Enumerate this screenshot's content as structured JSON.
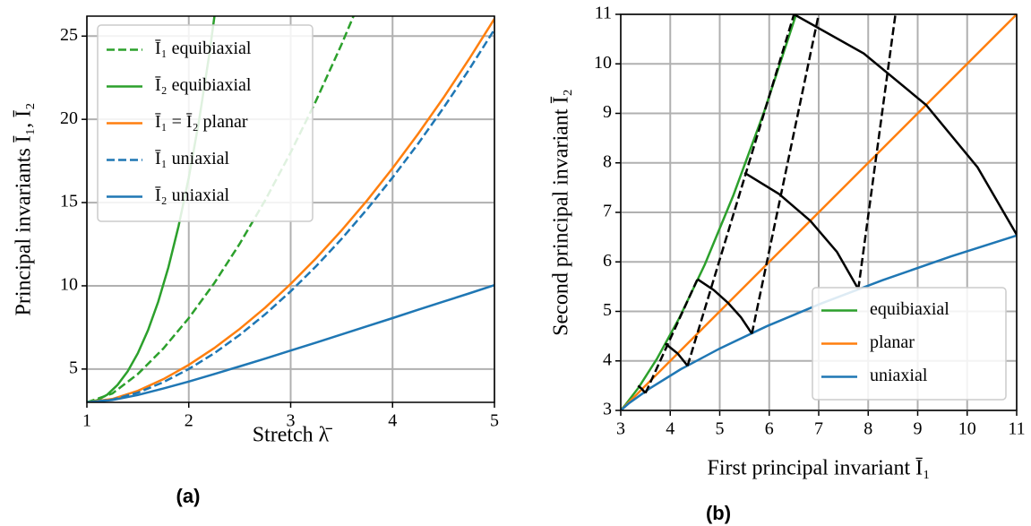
{
  "chart_data": [
    {
      "type": "line",
      "caption": "(a)",
      "xlabel": "Stretch λ̄",
      "ylabel": "Principal invariants Ī₁, Ī₂",
      "xlim": [
        1,
        5
      ],
      "ylim": [
        3,
        26.2
      ],
      "xticks": [
        1,
        2,
        3,
        4,
        5
      ],
      "yticks": [
        5,
        10,
        15,
        20,
        25
      ],
      "grid": true,
      "legend": "upper left",
      "series": [
        {
          "name": "Ī₁ equibiaxial",
          "color": "#2ca02c",
          "linestyle": "dashed",
          "x": [
            1,
            1.25,
            1.5,
            1.75,
            2,
            2.25,
            2.5,
            2.75,
            3,
            3.25,
            3.5,
            3.75
          ],
          "values": [
            3,
            3.53,
            4.7,
            6.23,
            8.06,
            10.16,
            12.53,
            15.14,
            18.01,
            21.13,
            24.51,
            28.13
          ]
        },
        {
          "name": "Ī₂ equibiaxial",
          "color": "#2ca02c",
          "linestyle": "solid",
          "x": [
            1,
            1.1,
            1.2,
            1.3,
            1.4,
            1.5,
            1.6,
            1.7,
            1.8,
            1.9,
            2,
            2.1,
            2.2,
            2.3
          ],
          "values": [
            3,
            3.12,
            3.46,
            4.04,
            4.86,
            5.95,
            7.33,
            9.04,
            11.11,
            13.59,
            16.5,
            19.9,
            23.84,
            28.36
          ]
        },
        {
          "name": "Ī₁ = Ī₂ planar",
          "color": "#ff7f0e",
          "linestyle": "solid",
          "x": [
            1,
            1.25,
            1.5,
            1.75,
            2,
            2.25,
            2.5,
            2.75,
            3,
            3.25,
            3.5,
            3.75,
            4,
            4.25,
            4.5,
            4.75,
            5
          ],
          "values": [
            3,
            3.2,
            3.69,
            4.39,
            5.25,
            6.26,
            7.41,
            8.69,
            10.11,
            11.66,
            13.33,
            15.13,
            17.06,
            19.12,
            21.3,
            23.61,
            26.04
          ]
        },
        {
          "name": "Ī₁ uniaxial",
          "color": "#1f77b4",
          "linestyle": "dashed",
          "x": [
            1,
            1.25,
            1.5,
            1.75,
            2,
            2.25,
            2.5,
            2.75,
            3,
            3.25,
            3.5,
            3.75,
            4,
            4.25,
            4.5,
            4.75,
            5
          ],
          "values": [
            3,
            3.16,
            3.58,
            4.21,
            5,
            5.95,
            7.05,
            8.29,
            9.67,
            11.18,
            12.82,
            14.6,
            16.5,
            18.53,
            20.69,
            22.98,
            25.4
          ]
        },
        {
          "name": "Ī₂ uniaxial",
          "color": "#1f77b4",
          "linestyle": "solid",
          "x": [
            1,
            1.25,
            1.5,
            1.75,
            2,
            2.25,
            2.5,
            2.75,
            3,
            3.25,
            3.5,
            3.75,
            4,
            4.25,
            4.5,
            4.75,
            5
          ],
          "values": [
            3,
            3.14,
            3.44,
            3.83,
            4.25,
            4.7,
            5.16,
            5.63,
            6.11,
            6.59,
            7.08,
            7.57,
            8.06,
            8.56,
            9.05,
            9.54,
            10.04
          ]
        }
      ]
    },
    {
      "type": "line",
      "caption": "(b)",
      "xlabel": "First principal invariant Ī₁",
      "ylabel": "Second principal invariant Ī₂",
      "xlim": [
        3,
        11
      ],
      "ylim": [
        3,
        11
      ],
      "xticks": [
        3,
        4,
        5,
        6,
        7,
        8,
        9,
        10,
        11
      ],
      "yticks": [
        3,
        4,
        5,
        6,
        7,
        8,
        9,
        10,
        11
      ],
      "grid": true,
      "legend": "lower right",
      "series": [
        {
          "name": "equibiaxial",
          "color": "#2ca02c",
          "linestyle": "solid",
          "x": [
            3,
            3.1,
            3.36,
            3.73,
            4.18,
            4.7,
            5.27,
            5.9,
            6.58
          ],
          "values": [
            3,
            3.12,
            3.46,
            4.04,
            4.86,
            5.95,
            7.33,
            9.04,
            11.11
          ]
        },
        {
          "name": "planar",
          "color": "#ff7f0e",
          "linestyle": "solid",
          "x": [
            3,
            11
          ],
          "values": [
            3,
            11
          ]
        },
        {
          "name": "uniaxial",
          "color": "#1f77b4",
          "linestyle": "solid",
          "x": [
            3,
            3.16,
            3.58,
            4.21,
            5,
            5.95,
            7.05,
            8.29,
            9.67,
            11.18
          ],
          "values": [
            3,
            3.14,
            3.44,
            3.83,
            4.25,
            4.7,
            5.16,
            5.63,
            6.11,
            6.59
          ]
        },
        {
          "color": "#000000",
          "linestyle": "solid",
          "x": [
            3.35,
            3.43,
            3.5
          ],
          "values": [
            3.5,
            3.43,
            3.35
          ]
        },
        {
          "color": "#000000",
          "linestyle": "solid",
          "x": [
            3.9,
            4.15,
            4.35
          ],
          "values": [
            4.35,
            4.15,
            3.9
          ]
        },
        {
          "color": "#000000",
          "linestyle": "solid",
          "x": [
            4.55,
            4.88,
            5.17,
            5.43,
            5.65
          ],
          "values": [
            5.65,
            5.43,
            5.17,
            4.88,
            4.55
          ]
        },
        {
          "color": "#000000",
          "linestyle": "solid",
          "x": [
            5.5,
            6.2,
            6.83,
            7.37,
            7.8
          ],
          "values": [
            7.8,
            7.37,
            6.83,
            6.2,
            5.45
          ]
        },
        {
          "color": "#000000",
          "linestyle": "solid",
          "x": [
            6.5,
            7.91,
            9.17,
            10.21,
            11
          ],
          "values": [
            11,
            10.21,
            9.17,
            7.91,
            6.55
          ]
        },
        {
          "color": "#000000",
          "linestyle": "dashed",
          "x": [
            3.5,
            4.55
          ],
          "values": [
            3.35,
            5.65
          ]
        },
        {
          "color": "#000000",
          "linestyle": "dashed",
          "x": [
            4.35,
            6.5
          ],
          "values": [
            3.9,
            11
          ]
        },
        {
          "color": "#000000",
          "linestyle": "dashed",
          "x": [
            5.65,
            7.0
          ],
          "values": [
            4.55,
            11
          ]
        },
        {
          "color": "#000000",
          "linestyle": "dashed",
          "x": [
            7.8,
            8.55
          ],
          "values": [
            5.45,
            11
          ]
        }
      ]
    }
  ]
}
